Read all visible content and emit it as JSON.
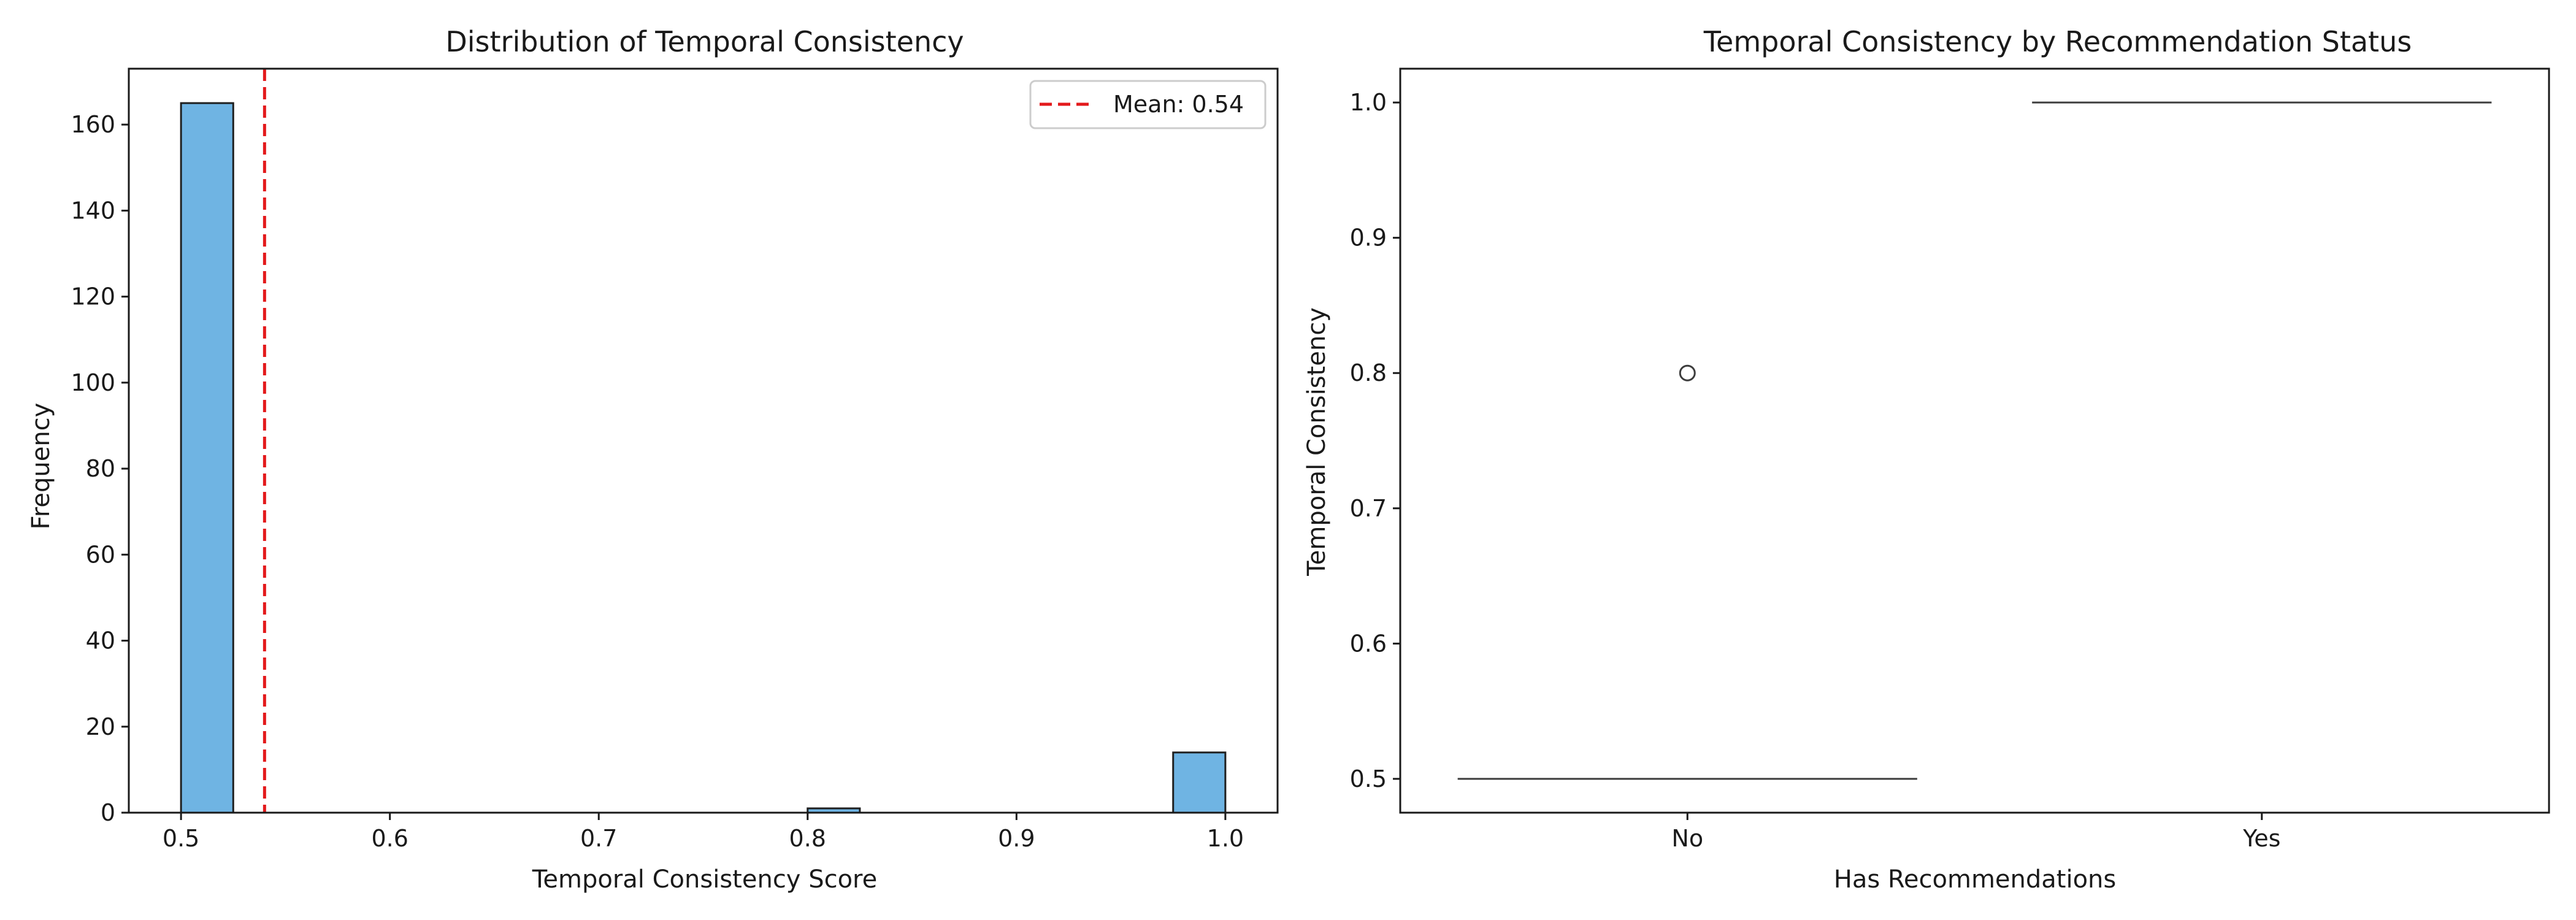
{
  "chart_data": [
    {
      "type": "bar",
      "title": "Distribution of Temporal Consistency",
      "xlabel": "Temporal Consistency Score",
      "ylabel": "Frequency",
      "xlim": [
        0.475,
        1.025
      ],
      "ylim": [
        0,
        173
      ],
      "xticks": [
        "0.5",
        "0.6",
        "0.7",
        "0.8",
        "0.9",
        "1.0"
      ],
      "yticks": [
        "0",
        "20",
        "40",
        "60",
        "80",
        "100",
        "120",
        "140",
        "160"
      ],
      "bin_width": 0.025,
      "bins": [
        {
          "start": 0.5,
          "end": 0.525,
          "count": 165
        },
        {
          "start": 0.8,
          "end": 0.825,
          "count": 1
        },
        {
          "start": 0.975,
          "end": 1.0,
          "count": 14
        }
      ],
      "mean_line": {
        "value": 0.54,
        "label": "Mean: 0.54",
        "color": "#e31a1c"
      },
      "legend_placement": "top-right",
      "bar_color": "#6fb4e3",
      "grid": false
    },
    {
      "type": "box",
      "title": "Temporal Consistency by Recommendation Status",
      "xlabel": "Has Recommendations",
      "ylabel": "Temporal Consistency",
      "categories": [
        "No",
        "Yes"
      ],
      "ylim": [
        0.475,
        1.025
      ],
      "yticks": [
        "0.5",
        "0.6",
        "0.7",
        "0.8",
        "0.9",
        "1.0"
      ],
      "boxes": [
        {
          "category": "No",
          "min": 0.5,
          "q1": 0.5,
          "median": 0.5,
          "q3": 0.5,
          "max": 0.5,
          "outliers": [
            0.8
          ]
        },
        {
          "category": "Yes",
          "min": 1.0,
          "q1": 1.0,
          "median": 1.0,
          "q3": 1.0,
          "max": 1.0,
          "outliers": []
        }
      ],
      "grid": false
    }
  ]
}
